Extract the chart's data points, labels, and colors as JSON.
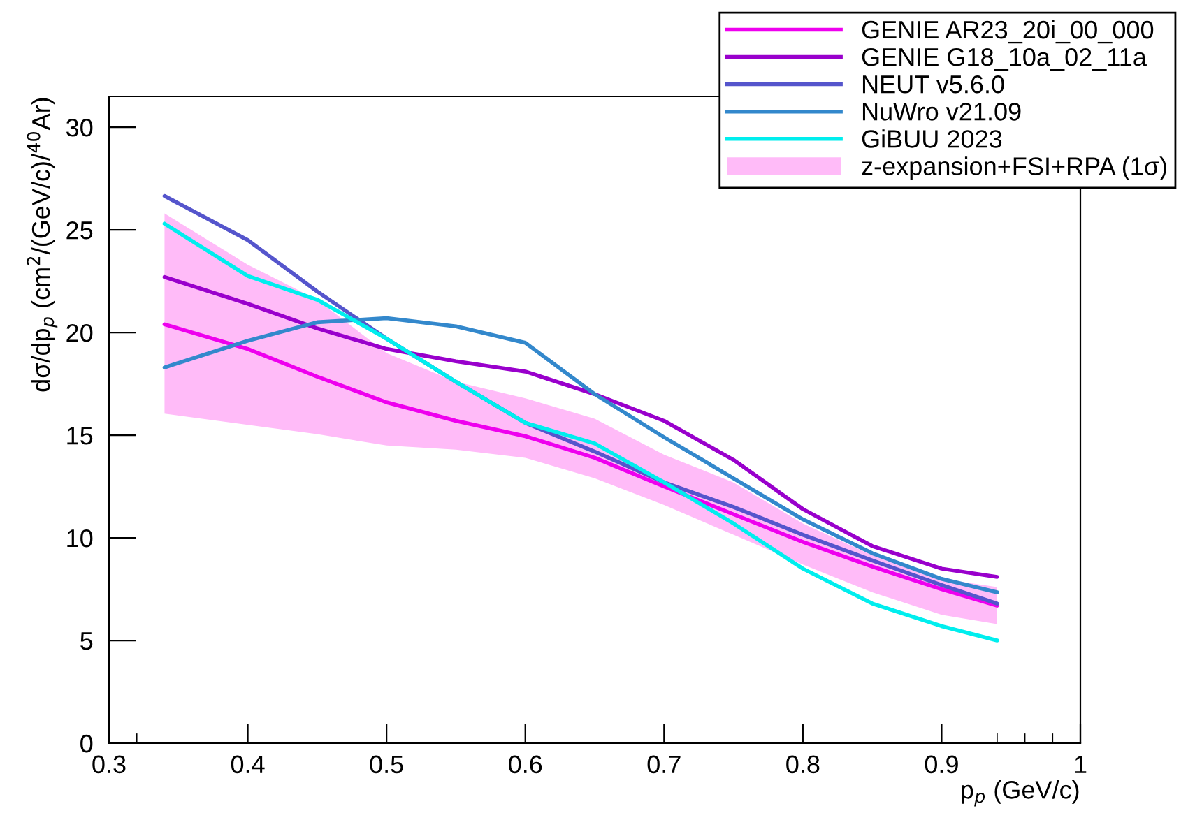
{
  "chart_data": {
    "type": "line",
    "xlabel": "p$_{p}$ (GeV/c)",
    "ylabel": "dσ/dp$_{p}$ (cm$^{2}$/(GeV/c)/$^{40}$Ar)",
    "x": [
      0.34,
      0.4,
      0.45,
      0.5,
      0.55,
      0.6,
      0.65,
      0.7,
      0.75,
      0.8,
      0.85,
      0.9,
      0.94
    ],
    "series": [
      {
        "name": "GENIE AR23_20i_00_000",
        "color": "#ee00ee",
        "values": [
          20.4,
          19.2,
          17.85,
          16.6,
          15.7,
          14.95,
          13.9,
          12.5,
          11.15,
          9.8,
          8.6,
          7.5,
          6.7
        ]
      },
      {
        "name": "GENIE G18_10a_02_11a",
        "color": "#9900cc",
        "values": [
          22.7,
          21.4,
          20.2,
          19.2,
          18.6,
          18.1,
          17.0,
          15.7,
          13.8,
          11.4,
          9.6,
          8.5,
          8.1
        ]
      },
      {
        "name": "NEUT v5.6.0",
        "color": "#5555cc",
        "values": [
          26.65,
          24.5,
          22.0,
          19.7,
          17.6,
          15.6,
          14.2,
          12.7,
          11.5,
          10.15,
          8.9,
          7.7,
          6.8
        ]
      },
      {
        "name": "NuWro v21.09",
        "color": "#3388cc",
        "values": [
          18.3,
          19.6,
          20.5,
          20.7,
          20.3,
          19.5,
          17.0,
          14.9,
          12.9,
          10.9,
          9.25,
          8.0,
          7.35
        ]
      },
      {
        "name": "GiBUU 2023",
        "color": "#00eeee",
        "values": [
          25.3,
          22.75,
          21.6,
          19.7,
          17.6,
          15.6,
          14.6,
          12.7,
          10.7,
          8.5,
          6.8,
          5.7,
          5.0
        ]
      },
      {
        "type": "area",
        "name": "z-expansion+FSI+RPA (1σ)",
        "color": "#ffbbf8",
        "values": [
          null,
          null,
          null,
          null,
          null,
          null,
          null,
          null,
          null,
          null,
          null,
          null,
          null
        ],
        "lower": [
          16.05,
          15.5,
          15.05,
          14.5,
          14.3,
          13.9,
          12.9,
          11.6,
          10.15,
          8.7,
          7.35,
          6.25,
          5.8
        ],
        "upper": [
          25.8,
          23.3,
          21.6,
          19.0,
          17.6,
          16.8,
          15.8,
          14.05,
          12.7,
          10.7,
          9.15,
          8.0,
          7.6
        ]
      }
    ],
    "xlim": [
      0.3,
      1.0
    ],
    "xticks": [
      0.3,
      {
        "value": 0.32,
        "label": null
      },
      0.4,
      0.5,
      0.6,
      0.7,
      0.8,
      0.9,
      {
        "value": 0.94,
        "label": null
      },
      {
        "value": 0.96,
        "label": null
      },
      {
        "value": 0.98,
        "label": null
      },
      1
    ],
    "ylim": [
      0,
      31.5
    ],
    "yticks": [
      0,
      5,
      10,
      15,
      20,
      25,
      30
    ],
    "legend": "top right",
    "grid": false
  }
}
